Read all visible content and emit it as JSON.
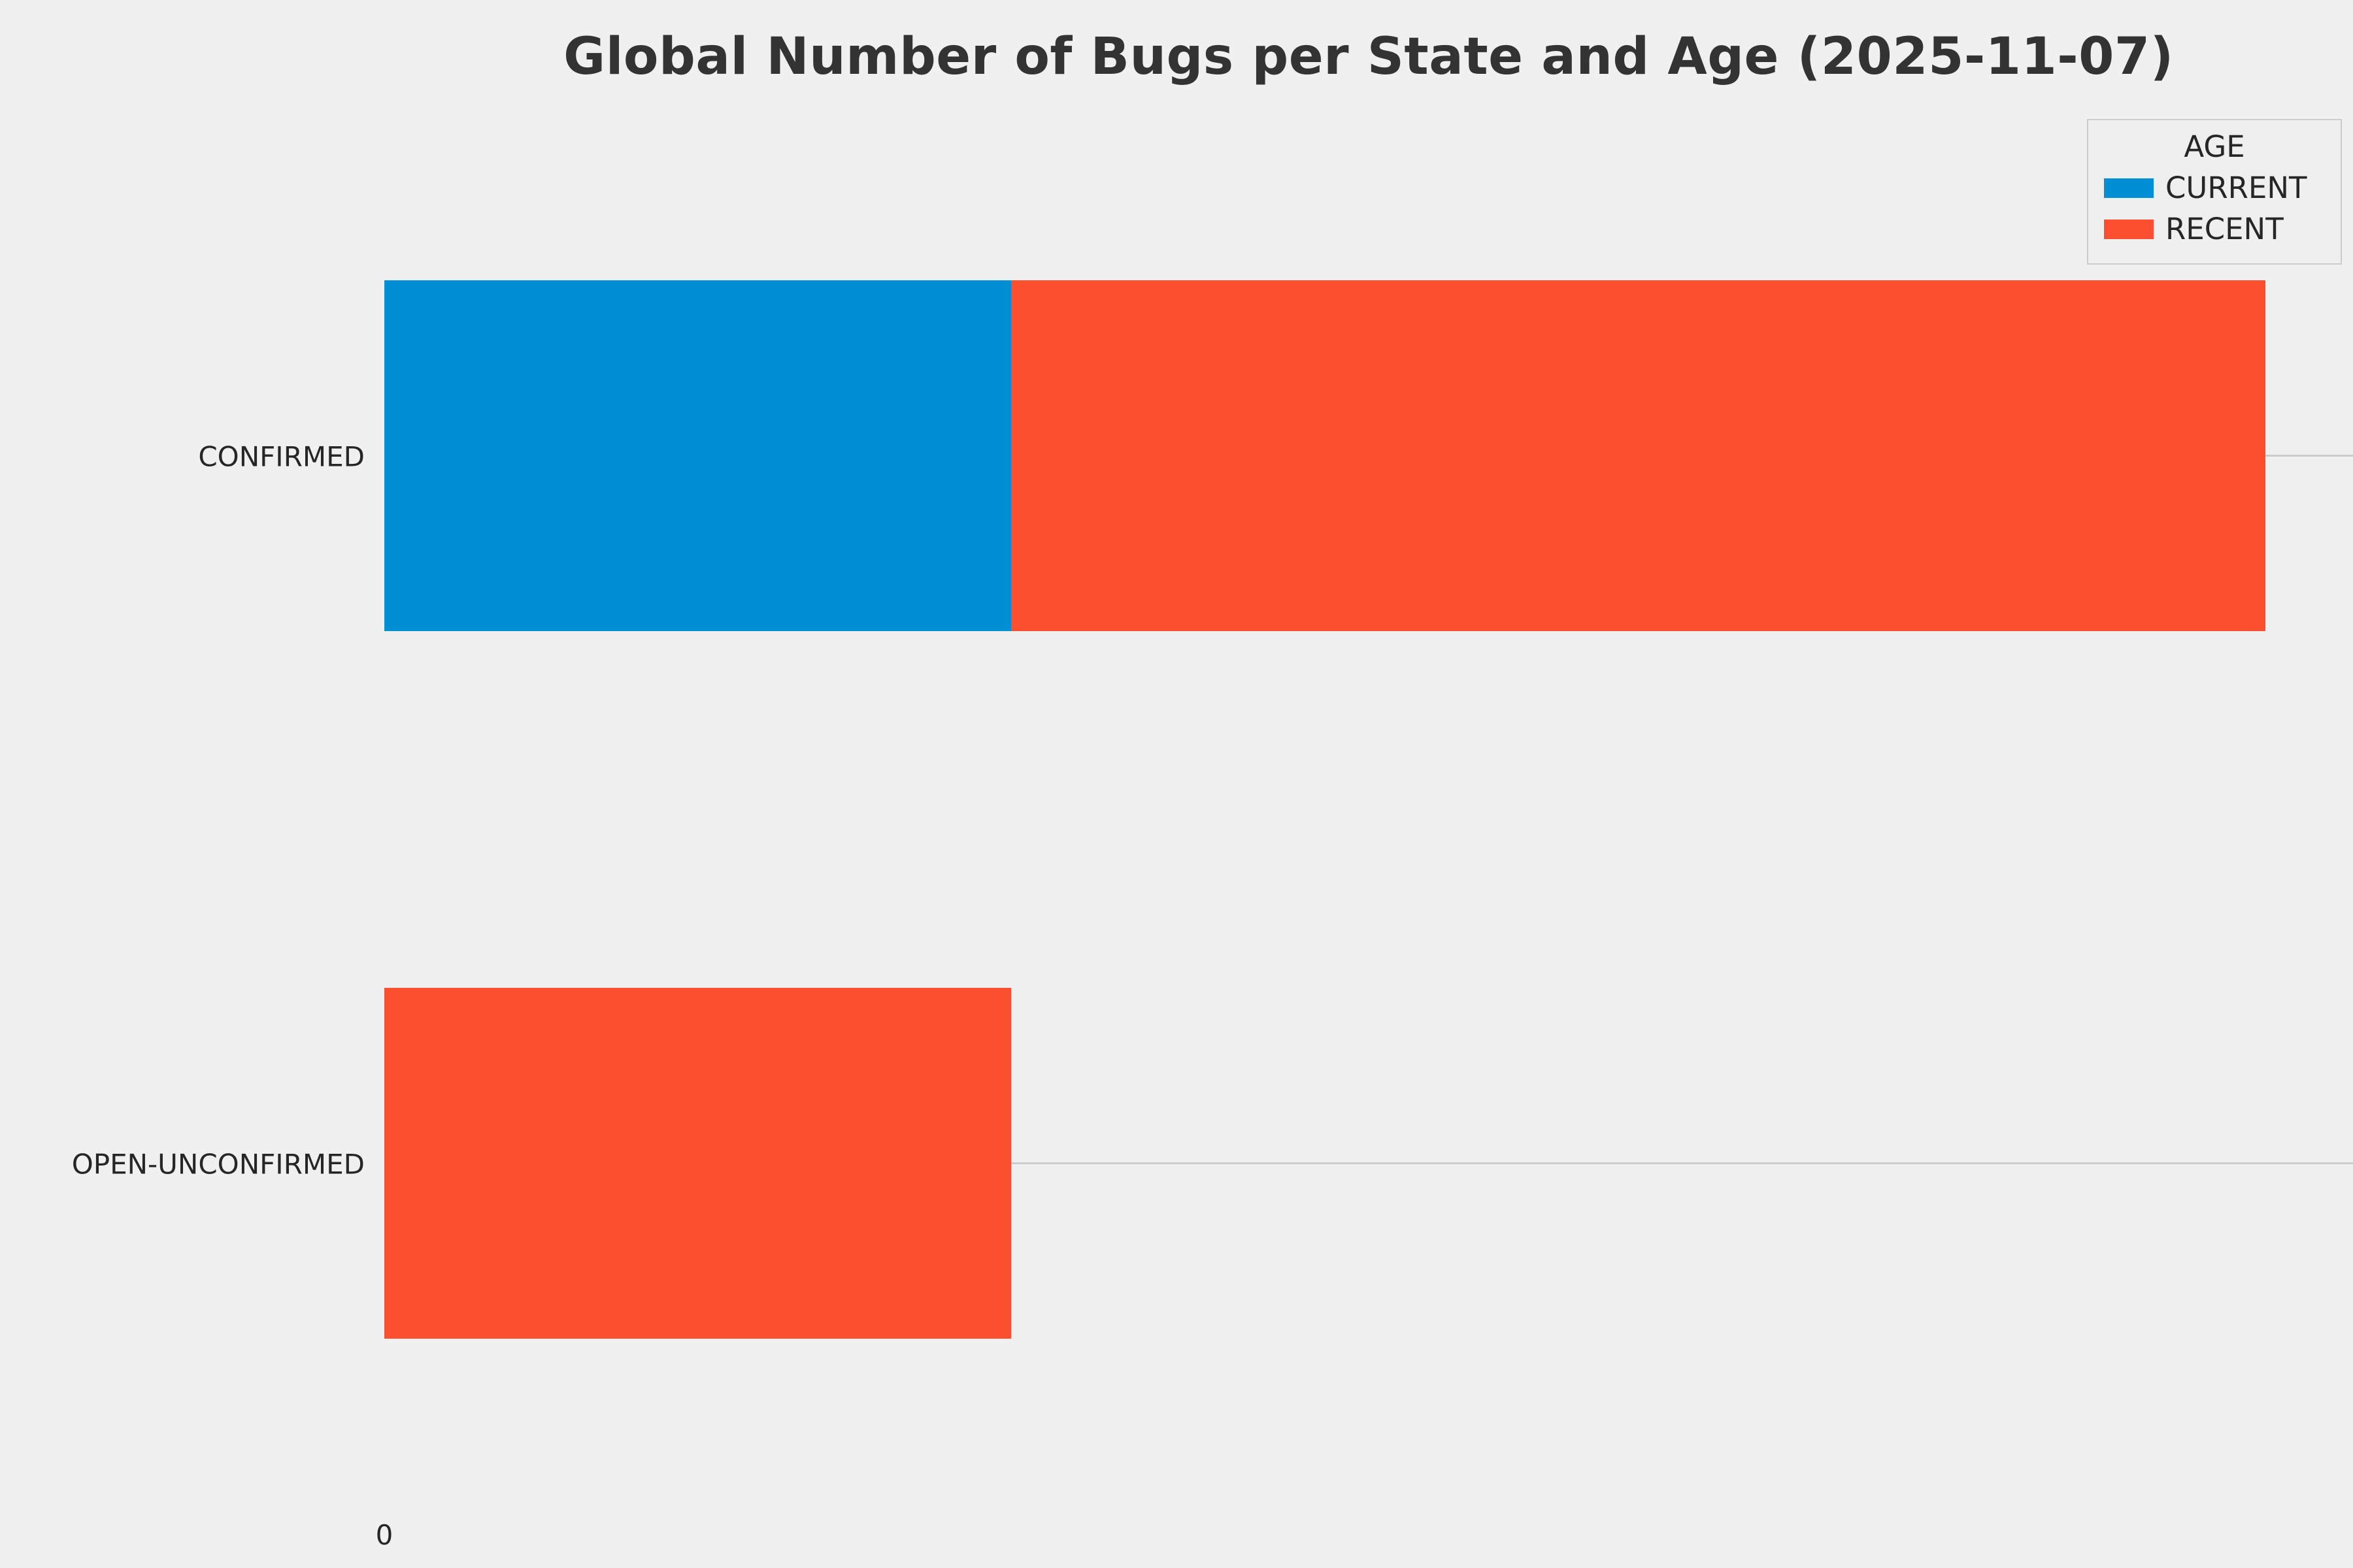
{
  "title": "Global Number of Bugs per State and Age (2025-11-07)",
  "axes": {
    "x_tick_labels": [
      "0"
    ]
  },
  "chart_data": {
    "type": "bar",
    "orientation": "horizontal",
    "stacked": true,
    "title": "Global Number of Bugs per State and Age (2025-11-07)",
    "xlabel": "",
    "ylabel": "",
    "categories": [
      "CONFIRMED",
      "OPEN-UNCONFIRMED"
    ],
    "series": [
      {
        "name": "CURRENT",
        "color": "#008fd5",
        "values": [
          1,
          0
        ]
      },
      {
        "name": "RECENT",
        "color": "#fc4f30",
        "values": [
          2,
          1
        ]
      }
    ],
    "xlim": [
      0,
      3.14
    ],
    "x_tick_labels": [
      "0"
    ],
    "grid": "y",
    "gridline_color": "#cccccc",
    "background": "#f0f0f0",
    "legend_title": "AGE",
    "legend_position": "upper right"
  }
}
